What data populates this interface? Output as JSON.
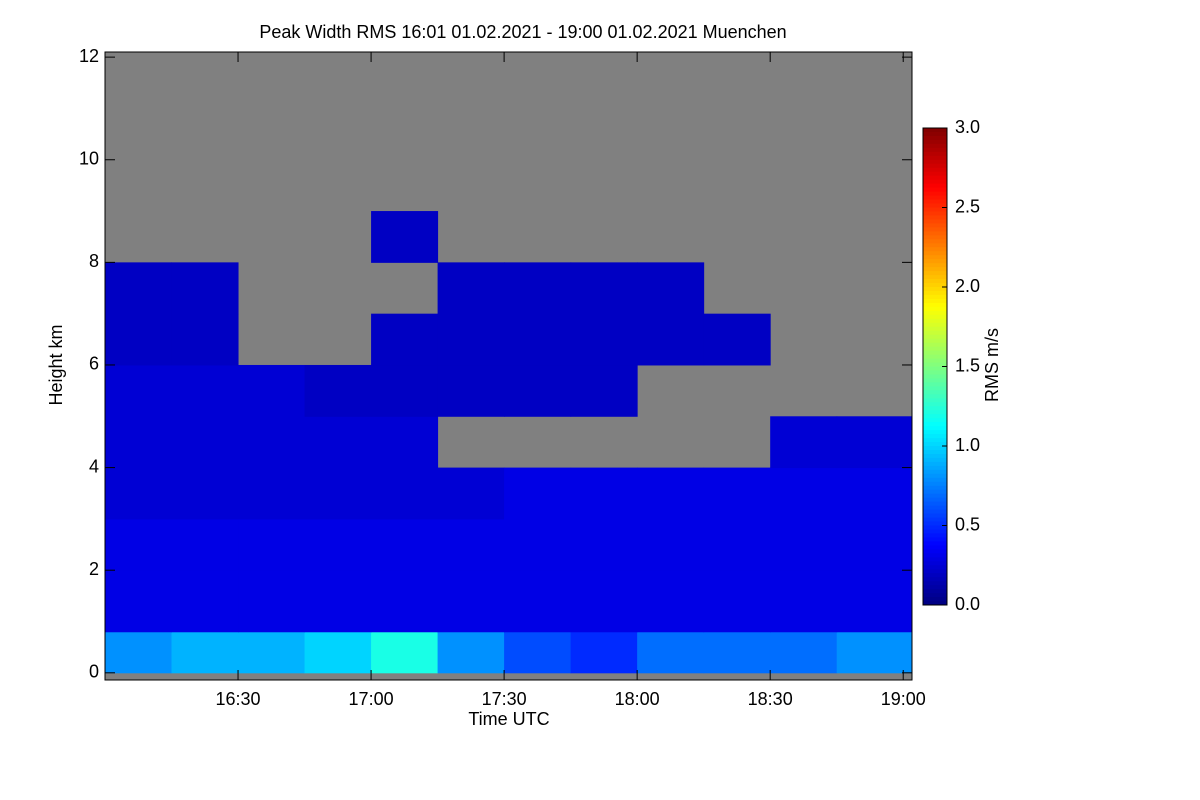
{
  "chart_data": {
    "type": "heatmap",
    "title": "Peak Width RMS   16:01 01.02.2021 - 19:00 01.02.2021 Muenchen",
    "x_label": "Time UTC",
    "y_label": "Height km",
    "colorbar_label": "RMS m/s",
    "missing_color": "#808080",
    "colormap": "jet",
    "xlim": [
      16.0,
      19.033
    ],
    "xticks": [
      {
        "value": 16.5,
        "label": "16:30"
      },
      {
        "value": 17.0,
        "label": "17:00"
      },
      {
        "value": 17.5,
        "label": "17:30"
      },
      {
        "value": 18.0,
        "label": "18:00"
      },
      {
        "value": 18.5,
        "label": "18:30"
      },
      {
        "value": 19.0,
        "label": "19:00"
      }
    ],
    "ylim": [
      -0.14,
      12.1
    ],
    "yticks": [
      0,
      2,
      4,
      6,
      8,
      10,
      12
    ],
    "zlim": [
      0,
      3
    ],
    "zticks": [
      {
        "value": 0,
        "label": "0.0"
      },
      {
        "value": 0.5,
        "label": "0.5"
      },
      {
        "value": 1,
        "label": "1.0"
      },
      {
        "value": 1.5,
        "label": "1.5"
      },
      {
        "value": 2,
        "label": "2.0"
      },
      {
        "value": 2.5,
        "label": "2.5"
      },
      {
        "value": 3,
        "label": "3.0"
      }
    ],
    "xbins": [
      16.0,
      16.25,
      16.5,
      16.75,
      17.0,
      17.25,
      17.5,
      17.75,
      18.0,
      18.25,
      18.5,
      18.75,
      19.033
    ],
    "ybins": [
      0,
      0.8,
      2,
      3,
      4,
      5,
      6,
      7,
      8,
      9,
      12
    ],
    "z": [
      [
        0.8,
        0.9,
        0.9,
        1.0,
        1.2,
        0.8,
        0.6,
        0.5,
        0.7,
        0.7,
        0.7,
        0.8
      ],
      [
        0.3,
        0.3,
        0.3,
        0.3,
        0.3,
        0.3,
        0.3,
        0.3,
        0.3,
        0.3,
        0.3,
        0.3
      ],
      [
        0.3,
        0.3,
        0.3,
        0.3,
        0.3,
        0.3,
        0.3,
        0.3,
        0.3,
        0.3,
        0.3,
        0.3
      ],
      [
        0.25,
        0.25,
        0.25,
        0.25,
        0.25,
        0.25,
        0.3,
        0.3,
        0.3,
        0.3,
        0.3,
        0.3
      ],
      [
        0.25,
        0.25,
        0.25,
        0.25,
        0.25,
        null,
        null,
        null,
        null,
        null,
        0.25,
        0.25
      ],
      [
        0.25,
        0.25,
        0.25,
        0.2,
        0.2,
        0.2,
        0.2,
        0.2,
        null,
        null,
        null,
        null
      ],
      [
        0.2,
        0.2,
        null,
        null,
        0.2,
        0.2,
        0.2,
        0.2,
        0.2,
        0.2,
        null,
        null
      ],
      [
        0.2,
        0.2,
        null,
        null,
        null,
        0.2,
        0.2,
        0.2,
        0.2,
        null,
        null,
        null
      ],
      [
        null,
        null,
        null,
        null,
        0.2,
        null,
        null,
        null,
        null,
        null,
        null,
        null
      ],
      [
        null,
        null,
        null,
        null,
        null,
        null,
        null,
        null,
        null,
        null,
        null,
        null
      ]
    ]
  }
}
